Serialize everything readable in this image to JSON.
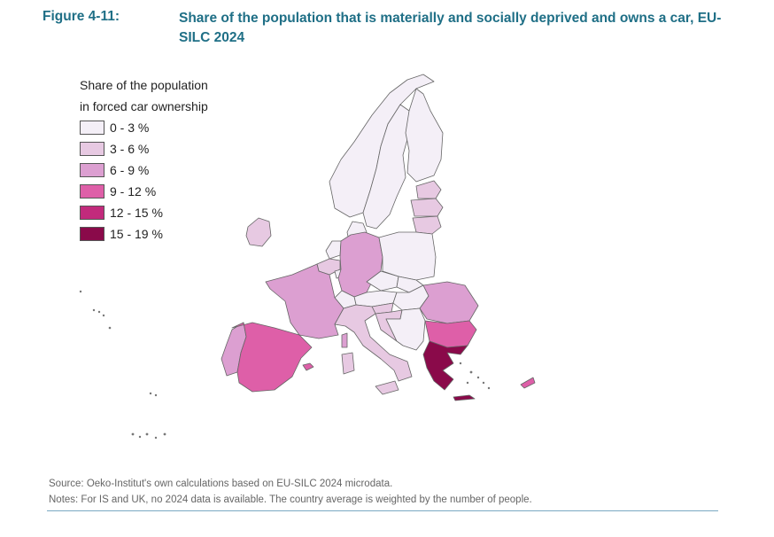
{
  "figure": {
    "label": "Figure 4-11:",
    "title": "Share of the population that is materially and socially deprived and owns a car, EU-SILC 2024"
  },
  "legend": {
    "title_line1": "Share of the population",
    "title_line2": "in forced car ownership",
    "classes": [
      {
        "label": "0 - 3 %",
        "color": "#f4eff7"
      },
      {
        "label": "3 - 6 %",
        "color": "#e7c9e2"
      },
      {
        "label": "6 - 9 %",
        "color": "#dc9fd1"
      },
      {
        "label": "9 - 12 %",
        "color": "#de5fa8"
      },
      {
        "label": "12 - 15 %",
        "color": "#c22a7c"
      },
      {
        "label": "15 - 19 %",
        "color": "#8a0a4a"
      }
    ]
  },
  "map": {
    "regions": [
      {
        "name": "finland",
        "class": 0
      },
      {
        "name": "sweden",
        "class": 0
      },
      {
        "name": "norway",
        "class": 0
      },
      {
        "name": "denmark",
        "class": 0
      },
      {
        "name": "estonia",
        "class": 1
      },
      {
        "name": "latvia",
        "class": 1
      },
      {
        "name": "lithuania",
        "class": 1
      },
      {
        "name": "ireland",
        "class": 1
      },
      {
        "name": "netherlands",
        "class": 0
      },
      {
        "name": "belgium",
        "class": 1
      },
      {
        "name": "luxembourg",
        "class": 0
      },
      {
        "name": "germany",
        "class": 2
      },
      {
        "name": "poland",
        "class": 0
      },
      {
        "name": "czechia",
        "class": 0
      },
      {
        "name": "slovakia",
        "class": 0
      },
      {
        "name": "austria",
        "class": 0
      },
      {
        "name": "switzerland",
        "class": 0
      },
      {
        "name": "hungary",
        "class": 0
      },
      {
        "name": "slovenia",
        "class": 1
      },
      {
        "name": "croatia",
        "class": 1
      },
      {
        "name": "serbia-region",
        "class": 0
      },
      {
        "name": "romania",
        "class": 2
      },
      {
        "name": "bulgaria",
        "class": 3
      },
      {
        "name": "france",
        "class": 2
      },
      {
        "name": "spain",
        "class": 3
      },
      {
        "name": "portugal",
        "class": 2
      },
      {
        "name": "italy",
        "class": 1
      },
      {
        "name": "sardinia",
        "class": 1
      },
      {
        "name": "sicily",
        "class": 1
      },
      {
        "name": "corsica",
        "class": 2
      },
      {
        "name": "greece",
        "class": 5
      },
      {
        "name": "crete",
        "class": 5
      },
      {
        "name": "cyprus",
        "class": 3
      },
      {
        "name": "balearics",
        "class": 3
      }
    ]
  },
  "source": "Source: Oeko-Institut's own calculations based on EU-SILC 2024 microdata.",
  "notes": "Notes: For IS and UK, no 2024 data is available. The country average is weighted by the number of people."
}
